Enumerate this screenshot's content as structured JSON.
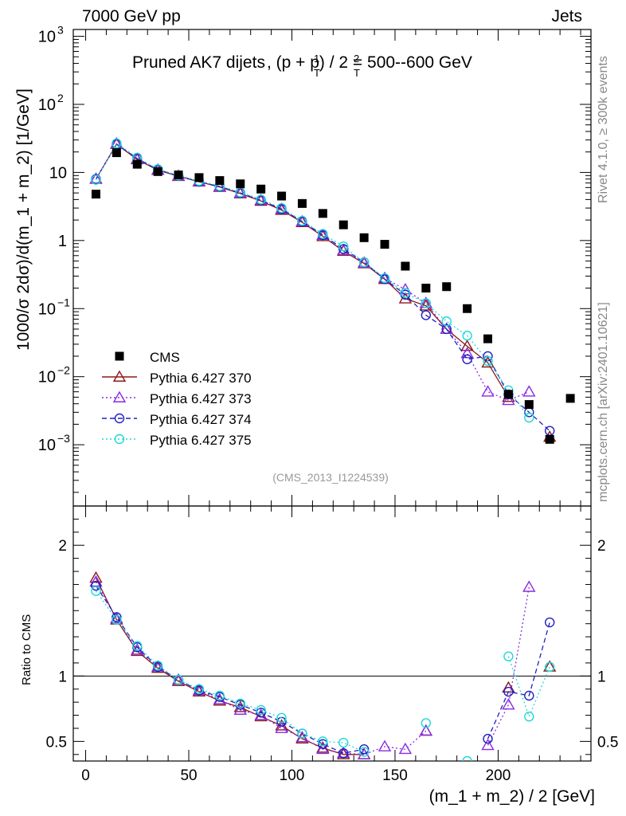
{
  "chart_data": {
    "type": "line",
    "header_left": "7000 GeV pp",
    "header_right": "Jets",
    "title": "Pruned AK7 dijets",
    "title_math": ", (p + p) / 2 = 500--600 GeV",
    "analysis_id": "(CMS_2013_I1224539)",
    "side_label_top": "Rivet 4.1.0, ≥ 300k events",
    "side_label_bottom": "mcplots.cern.ch [arXiv:2401.10621]",
    "ylabel_main": "1000/σ   2dσ)/d(m_1 + m_2) [1/GeV]",
    "ylabel_ratio": "Ratio to CMS",
    "xlabel": "(m_1 + m_2) / 2 [GeV]",
    "xlim": [
      -6,
      245
    ],
    "ylim_main_log10": [
      -3.9,
      3.1
    ],
    "ylim_ratio": [
      0.35,
      2.3
    ],
    "x_ticks": [
      0,
      50,
      100,
      150,
      200
    ],
    "y_ticks_main": [
      {
        "v": 1000,
        "text": "10",
        "exp": "3"
      },
      {
        "v": 100,
        "text": "10",
        "exp": "2"
      },
      {
        "v": 10,
        "text": "10",
        "exp": ""
      },
      {
        "v": 1,
        "text": "1",
        "exp": ""
      },
      {
        "v": 0.1,
        "text": "10",
        "exp": "−1"
      },
      {
        "v": 0.01,
        "text": "10",
        "exp": "−2"
      },
      {
        "v": 0.001,
        "text": "10",
        "exp": "−3"
      }
    ],
    "y_ticks_ratio": [
      {
        "v": 2,
        "text": "2"
      },
      {
        "v": 1,
        "text": "1"
      },
      {
        "v": 0.5,
        "text": "0.5"
      }
    ],
    "x": [
      5,
      15,
      25,
      35,
      45,
      55,
      65,
      75,
      85,
      95,
      105,
      115,
      125,
      135,
      145,
      155,
      165,
      175,
      185,
      195,
      205,
      215,
      225,
      235
    ],
    "cms": [
      4.8,
      19.5,
      13.2,
      10.3,
      9.2,
      8.4,
      7.6,
      6.8,
      5.7,
      4.5,
      3.5,
      2.5,
      1.7,
      1.1,
      0.88,
      0.42,
      0.2,
      0.21,
      0.1,
      0.036,
      0.0055,
      0.0039,
      0.0012,
      0.0048
    ],
    "series": [
      {
        "name": "Pythia 6.427 370",
        "color": "#8b1a1a",
        "marker": "triangle",
        "dash": "",
        "values": [
          8.0,
          26.0,
          15.5,
          10.8,
          8.8,
          7.3,
          6.1,
          4.9,
          3.8,
          2.8,
          1.85,
          1.15,
          0.7,
          0.46,
          0.27,
          0.14,
          0.11,
          0.05,
          0.028,
          0.016,
          0.005,
          null,
          0.0013,
          null
        ],
        "ratio": [
          1.75,
          1.43,
          1.19,
          1.06,
          0.96,
          0.88,
          0.81,
          0.76,
          0.69,
          0.62,
          0.52,
          0.45,
          0.4,
          0.4,
          null,
          null,
          0.58,
          null,
          null,
          null,
          0.91,
          null,
          1.07,
          null
        ]
      },
      {
        "name": "Pythia 6.427 373",
        "color": "#8a2be2",
        "marker": "triangle",
        "dash": "2,3",
        "values": [
          8.0,
          26.5,
          15.8,
          10.9,
          8.9,
          7.4,
          6.2,
          5.0,
          3.9,
          2.9,
          1.9,
          1.2,
          0.72,
          0.47,
          0.28,
          0.19,
          0.12,
          0.05,
          0.022,
          0.006,
          0.0045,
          0.006,
          null,
          null
        ],
        "ratio": [
          1.72,
          1.44,
          1.2,
          1.07,
          0.97,
          0.89,
          0.82,
          0.74,
          0.7,
          0.6,
          0.53,
          0.44,
          0.41,
          0.4,
          0.46,
          0.44,
          0.58,
          null,
          null,
          0.47,
          0.78,
          1.68,
          null,
          null
        ]
      },
      {
        "name": "Pythia 6.427 374",
        "color": "#2020c0",
        "marker": "circle",
        "dash": "6,4",
        "values": [
          8.0,
          26.0,
          16.0,
          11.0,
          8.9,
          7.3,
          6.2,
          5.0,
          3.9,
          2.9,
          1.9,
          1.2,
          0.75,
          0.48,
          0.27,
          0.16,
          0.08,
          0.05,
          0.018,
          0.02,
          0.0055,
          0.003,
          0.0016,
          null
        ],
        "ratio": [
          1.69,
          1.45,
          1.22,
          1.07,
          0.97,
          0.89,
          0.84,
          0.78,
          0.72,
          0.65,
          0.56,
          0.48,
          0.41,
          0.44,
          null,
          null,
          null,
          null,
          null,
          0.52,
          0.88,
          0.85,
          1.41,
          null
        ]
      },
      {
        "name": "Pythia 6.427 375",
        "color": "#20d8d8",
        "marker": "circle",
        "dash": "2,3",
        "values": [
          7.8,
          26.8,
          16.5,
          11.2,
          9.0,
          7.5,
          6.3,
          5.1,
          4.0,
          3.0,
          1.95,
          1.25,
          0.82,
          0.48,
          0.28,
          0.17,
          0.12,
          0.065,
          0.04,
          0.017,
          0.0063,
          0.0025,
          null,
          null
        ],
        "ratio": [
          1.65,
          1.43,
          1.23,
          1.08,
          0.97,
          0.9,
          0.85,
          0.79,
          0.74,
          0.68,
          0.56,
          0.5,
          0.49,
          0.42,
          null,
          null,
          0.64,
          null,
          0.35,
          null,
          1.15,
          0.69,
          1.07,
          null
        ]
      }
    ]
  }
}
